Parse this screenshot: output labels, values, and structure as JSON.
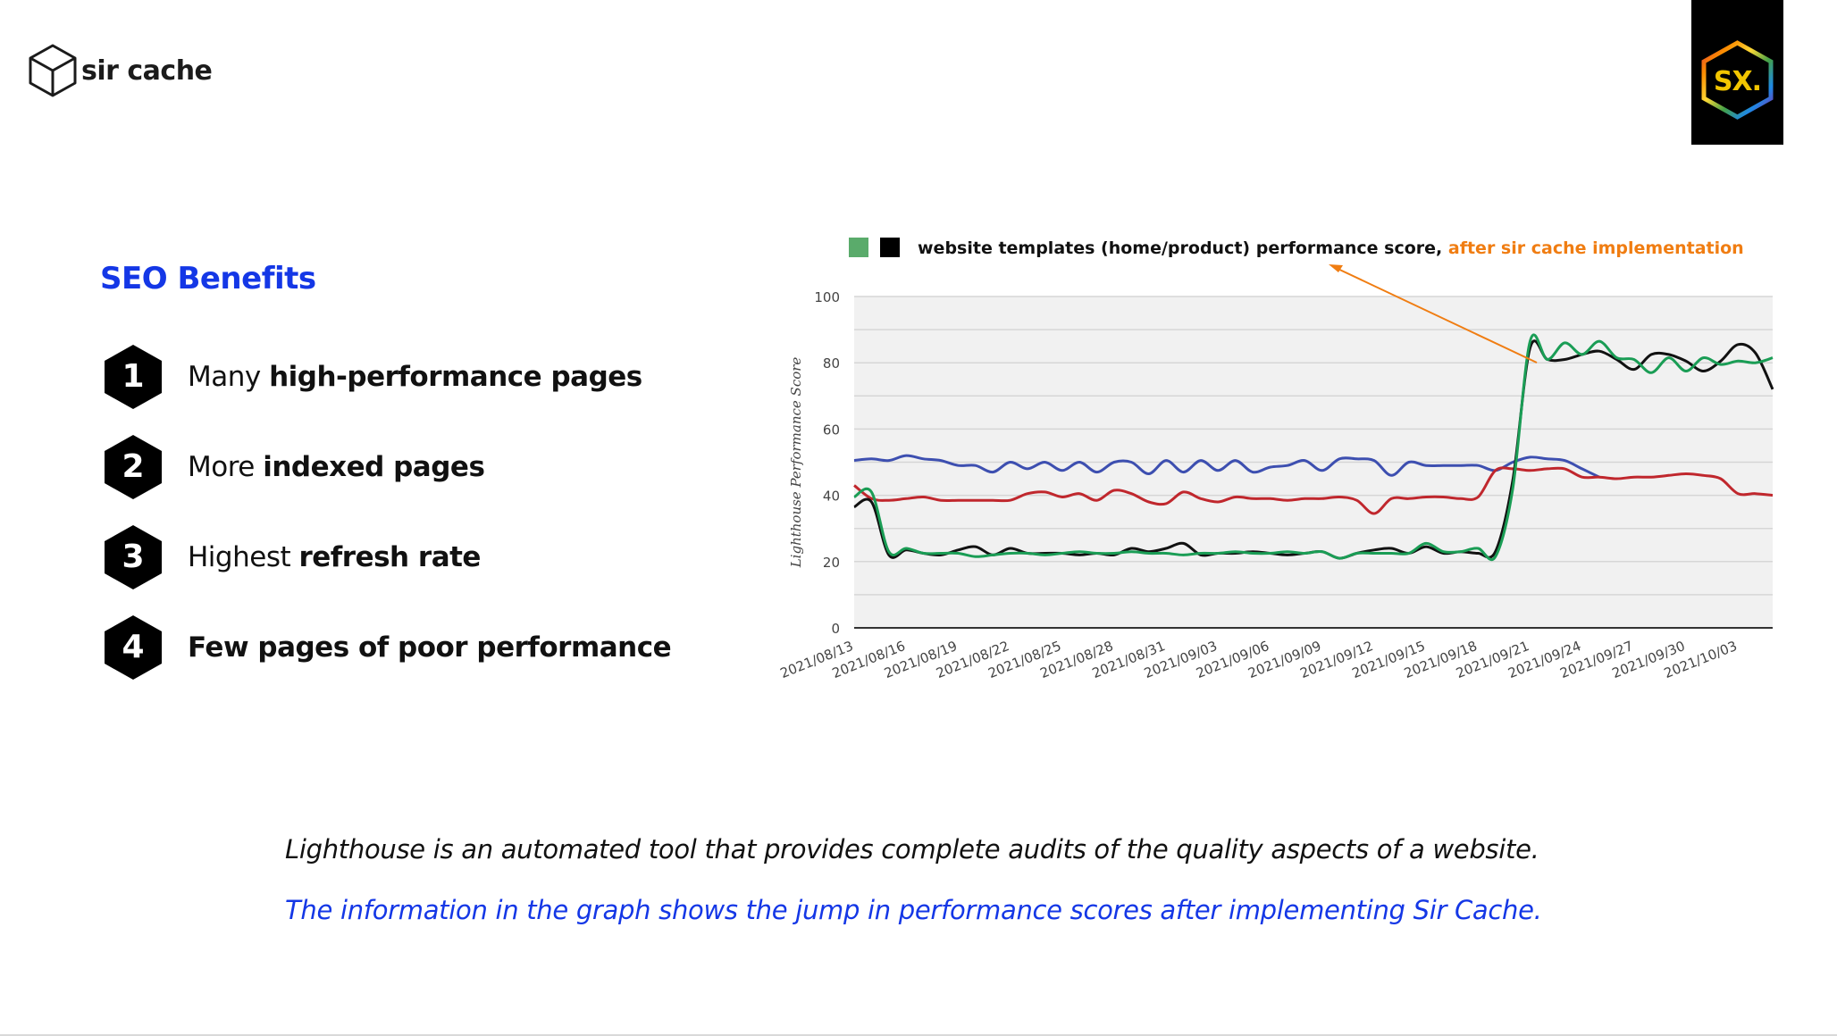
{
  "brand": {
    "name": "sir cache",
    "logo_icon": "cube-icon"
  },
  "partner_logo": {
    "text": "SX."
  },
  "seo": {
    "title": "SEO Benefits",
    "items": [
      {
        "number": "1",
        "pre": "Many ",
        "bold": "high-performance pages"
      },
      {
        "number": "2",
        "pre": "More ",
        "bold": "indexed pages"
      },
      {
        "number": "3",
        "pre": "Highest ",
        "bold": "refresh rate"
      },
      {
        "number": "4",
        "pre": "",
        "bold": "Few pages of poor performance"
      }
    ]
  },
  "captions": {
    "line1": "Lighthouse is an automated tool that provides complete audits of the quality aspects of a website.",
    "line2": "The information in the graph shows the jump in performance scores after implementing Sir Cache."
  },
  "colors": {
    "accent_blue": "#1437e6",
    "annotation_orange": "#f07d12",
    "green": "#1a9d55",
    "black": "#111111",
    "blue": "#3d4fb0",
    "red": "#c0272d"
  },
  "chart_data": {
    "type": "line",
    "legend": {
      "text": "website templates (home/product) performance score,",
      "highlight": "after sir cache implementation",
      "swatches": [
        "#5aab6b",
        "#000000"
      ]
    },
    "ylabel": "Lighthouse Performance Score",
    "ylim": [
      0,
      100
    ],
    "yticks": [
      0,
      20,
      40,
      60,
      80,
      100
    ],
    "x_tick_labels": [
      "2021/08/13",
      "2021/08/16",
      "2021/08/19",
      "2021/08/22",
      "2021/08/25",
      "2021/08/28",
      "2021/08/31",
      "2021/09/03",
      "2021/09/06",
      "2021/09/09",
      "2021/09/12",
      "2021/09/15",
      "2021/09/18",
      "2021/09/21",
      "2021/09/24",
      "2021/09/27",
      "2021/09/30",
      "2021/10/03"
    ],
    "x_start": "2021/08/13",
    "x_end": "2021/10/05",
    "grid": true,
    "series": [
      {
        "color": "#3d4fb0",
        "x": [
          "2021/08/13",
          "2021/08/14",
          "2021/08/15",
          "2021/08/16",
          "2021/08/17",
          "2021/08/18",
          "2021/08/19",
          "2021/08/20",
          "2021/08/21",
          "2021/08/22",
          "2021/08/23",
          "2021/08/24",
          "2021/08/25",
          "2021/08/26",
          "2021/08/27",
          "2021/08/28",
          "2021/08/29",
          "2021/08/30",
          "2021/08/31",
          "2021/09/01",
          "2021/09/02",
          "2021/09/03",
          "2021/09/04",
          "2021/09/05",
          "2021/09/06",
          "2021/09/07",
          "2021/09/08",
          "2021/09/09",
          "2021/09/10",
          "2021/09/11",
          "2021/09/12",
          "2021/09/13",
          "2021/09/14",
          "2021/09/15",
          "2021/09/16",
          "2021/09/17",
          "2021/09/18",
          "2021/09/19",
          "2021/09/20",
          "2021/09/21",
          "2021/09/22",
          "2021/09/23",
          "2021/09/24",
          "2021/09/25"
        ],
        "values": [
          50.5,
          51,
          50.5,
          52,
          51,
          50.5,
          49,
          49,
          47,
          50,
          48,
          50,
          47.5,
          50,
          47,
          50,
          50,
          46.5,
          50.5,
          47,
          50.5,
          47.5,
          50.5,
          47,
          48.5,
          49,
          50.5,
          47.5,
          51,
          51,
          50.5,
          46,
          50,
          49,
          49,
          49,
          49,
          47.5,
          50,
          51.5,
          51,
          50.5,
          48,
          45.5
        ]
      },
      {
        "color": "#c0272d",
        "x": [
          "2021/08/13",
          "2021/08/14",
          "2021/08/15",
          "2021/08/16",
          "2021/08/17",
          "2021/08/18",
          "2021/08/19",
          "2021/08/20",
          "2021/08/21",
          "2021/08/22",
          "2021/08/23",
          "2021/08/24",
          "2021/08/25",
          "2021/08/26",
          "2021/08/27",
          "2021/08/28",
          "2021/08/29",
          "2021/08/30",
          "2021/08/31",
          "2021/09/01",
          "2021/09/02",
          "2021/09/03",
          "2021/09/04",
          "2021/09/05",
          "2021/09/06",
          "2021/09/07",
          "2021/09/08",
          "2021/09/09",
          "2021/09/10",
          "2021/09/11",
          "2021/09/12",
          "2021/09/13",
          "2021/09/14",
          "2021/09/15",
          "2021/09/16",
          "2021/09/17",
          "2021/09/18",
          "2021/09/19",
          "2021/09/20",
          "2021/09/21",
          "2021/09/22",
          "2021/09/23",
          "2021/09/24",
          "2021/09/25",
          "2021/09/26",
          "2021/09/27",
          "2021/09/28",
          "2021/09/29",
          "2021/09/30",
          "2021/10/01",
          "2021/10/02",
          "2021/10/03",
          "2021/10/04",
          "2021/10/05"
        ],
        "values": [
          43,
          39,
          38.5,
          39,
          39.5,
          38.5,
          38.5,
          38.5,
          38.5,
          38.5,
          40.5,
          41,
          39.5,
          40.5,
          38.5,
          41.5,
          40.5,
          38,
          37.5,
          41,
          39,
          38,
          39.5,
          39,
          39,
          38.5,
          39,
          39,
          39.5,
          38.5,
          34.5,
          39,
          39,
          39.5,
          39.5,
          39,
          39.5,
          47.5,
          48,
          47.5,
          48,
          48,
          45.5,
          45.5,
          45,
          45.5,
          45.5,
          46,
          46.5,
          46,
          45,
          40.5,
          40.5,
          40
        ]
      },
      {
        "color": "#111111",
        "x": [
          "2021/08/13",
          "2021/08/14",
          "2021/08/15",
          "2021/08/16",
          "2021/08/17",
          "2021/08/18",
          "2021/08/19",
          "2021/08/20",
          "2021/08/21",
          "2021/08/22",
          "2021/08/23",
          "2021/08/24",
          "2021/08/25",
          "2021/08/26",
          "2021/08/27",
          "2021/08/28",
          "2021/08/29",
          "2021/08/30",
          "2021/08/31",
          "2021/09/01",
          "2021/09/02",
          "2021/09/03",
          "2021/09/04",
          "2021/09/05",
          "2021/09/06",
          "2021/09/07",
          "2021/09/08",
          "2021/09/09",
          "2021/09/10",
          "2021/09/11",
          "2021/09/12",
          "2021/09/13",
          "2021/09/14",
          "2021/09/15",
          "2021/09/16",
          "2021/09/17",
          "2021/09/18",
          "2021/09/19",
          "2021/09/20",
          "2021/09/21",
          "2021/09/22",
          "2021/09/23",
          "2021/09/24",
          "2021/09/25",
          "2021/09/26",
          "2021/09/27",
          "2021/09/28",
          "2021/09/29",
          "2021/09/30",
          "2021/10/01",
          "2021/10/02",
          "2021/10/03",
          "2021/10/04",
          "2021/10/05"
        ],
        "values": [
          36.5,
          38,
          22,
          23.5,
          22.5,
          22,
          23.5,
          24.5,
          22,
          24,
          22.5,
          22.5,
          22.5,
          22,
          22.5,
          22,
          24,
          23,
          24,
          25.5,
          22,
          22.5,
          22.5,
          23,
          22.5,
          22,
          22.5,
          23,
          21,
          22.5,
          23.5,
          24,
          22.5,
          24.5,
          22.5,
          23,
          22.5,
          23,
          44.5,
          84.5,
          81,
          81,
          82.5,
          83.5,
          81,
          78,
          82.5,
          82.5,
          80.5,
          77.5,
          80.5,
          85.5,
          83,
          72
        ]
      },
      {
        "color": "#1a9d55",
        "x": [
          "2021/08/13",
          "2021/08/14",
          "2021/08/15",
          "2021/08/16",
          "2021/08/17",
          "2021/08/18",
          "2021/08/19",
          "2021/08/20",
          "2021/08/21",
          "2021/08/22",
          "2021/08/23",
          "2021/08/24",
          "2021/08/25",
          "2021/08/26",
          "2021/08/27",
          "2021/08/28",
          "2021/08/29",
          "2021/08/30",
          "2021/08/31",
          "2021/09/01",
          "2021/09/02",
          "2021/09/03",
          "2021/09/04",
          "2021/09/05",
          "2021/09/06",
          "2021/09/07",
          "2021/09/08",
          "2021/09/09",
          "2021/09/10",
          "2021/09/11",
          "2021/09/12",
          "2021/09/13",
          "2021/09/14",
          "2021/09/15",
          "2021/09/16",
          "2021/09/17",
          "2021/09/18",
          "2021/09/19",
          "2021/09/20",
          "2021/09/21",
          "2021/09/22",
          "2021/09/23",
          "2021/09/24",
          "2021/09/25",
          "2021/09/26",
          "2021/09/27",
          "2021/09/28",
          "2021/09/29",
          "2021/09/30",
          "2021/10/01",
          "2021/10/02",
          "2021/10/03",
          "2021/10/04",
          "2021/10/05"
        ],
        "values": [
          39.5,
          41,
          23,
          24,
          22.5,
          22.5,
          22.5,
          21.5,
          22,
          22.5,
          22.5,
          22,
          22.5,
          23,
          22.5,
          22.5,
          23,
          22.5,
          22.5,
          22,
          22.5,
          22.5,
          23,
          22.5,
          22.5,
          23,
          22.5,
          23,
          21,
          22.5,
          22.5,
          22.5,
          22.5,
          25.5,
          23,
          23,
          24,
          21.5,
          42,
          86.5,
          81,
          86,
          82.5,
          86.5,
          81.5,
          81,
          77,
          81.5,
          77.5,
          81.5,
          79.5,
          80.5,
          80,
          81.5
        ]
      }
    ]
  }
}
